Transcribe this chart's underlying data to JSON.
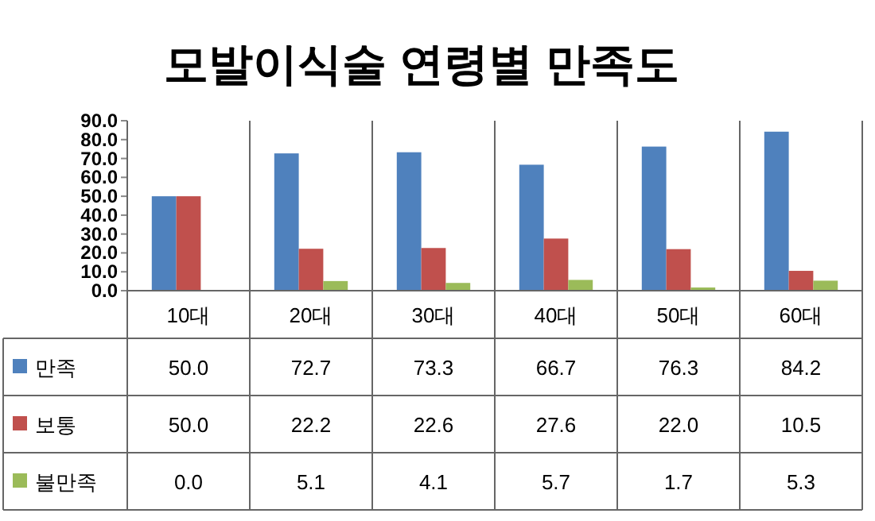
{
  "chart_data": {
    "type": "bar",
    "title": "모발이식술 연령별 만족도",
    "categories": [
      "10대",
      "20대",
      "30대",
      "40대",
      "50대",
      "60대"
    ],
    "series": [
      {
        "name": "만족",
        "color": "#4f81bd",
        "values": [
          50.0,
          72.7,
          73.3,
          66.7,
          76.3,
          84.2
        ],
        "value_labels": [
          "50.0",
          "72.7",
          "73.3",
          "66.7",
          "76.3",
          "84.2"
        ]
      },
      {
        "name": "보통",
        "color": "#c0504d",
        "values": [
          50.0,
          22.2,
          22.6,
          27.6,
          22.0,
          10.5
        ],
        "value_labels": [
          "50.0",
          "22.2",
          "22.6",
          "27.6",
          "22.0",
          "10.5"
        ]
      },
      {
        "name": "불만족",
        "color": "#9bbb59",
        "values": [
          0.0,
          5.1,
          4.1,
          5.7,
          1.7,
          5.3
        ],
        "value_labels": [
          "0.0",
          "5.1",
          "4.1",
          "5.7",
          "1.7",
          "5.3"
        ]
      }
    ],
    "ylim": [
      0,
      90
    ],
    "yticks": [
      {
        "value": 0,
        "label": "0.0"
      },
      {
        "value": 10,
        "label": "10.0"
      },
      {
        "value": 20,
        "label": "20.0"
      },
      {
        "value": 30,
        "label": "30.0"
      },
      {
        "value": 40,
        "label": "40.0"
      },
      {
        "value": 50,
        "label": "50.0"
      },
      {
        "value": 60,
        "label": "60.0"
      },
      {
        "value": 70,
        "label": "70.0"
      },
      {
        "value": 80,
        "label": "80.0"
      },
      {
        "value": 90,
        "label": "90.0"
      }
    ],
    "grid": false,
    "legend": "bottom left"
  }
}
